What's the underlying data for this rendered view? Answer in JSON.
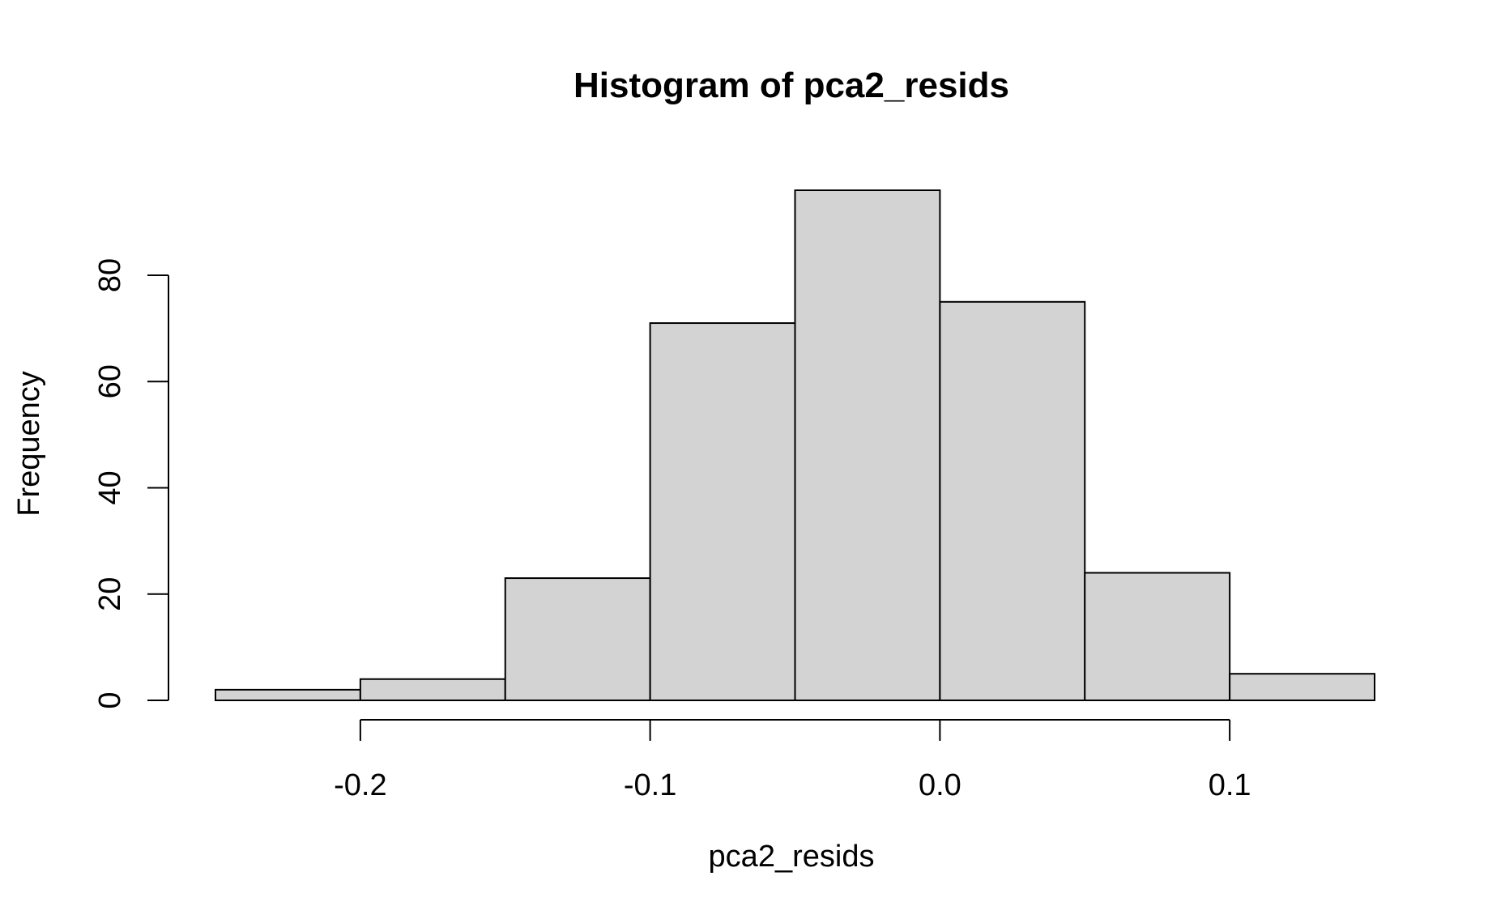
{
  "chart_data": {
    "type": "bar",
    "subtype": "histogram",
    "title": "Histogram of pca2_resids",
    "xlabel": "pca2_resids",
    "ylabel": "Frequency",
    "bins": [
      {
        "start": -0.25,
        "end": -0.2,
        "count": 2
      },
      {
        "start": -0.2,
        "end": -0.15,
        "count": 4
      },
      {
        "start": -0.15,
        "end": -0.1,
        "count": 23
      },
      {
        "start": -0.1,
        "end": -0.05,
        "count": 71
      },
      {
        "start": -0.05,
        "end": 0.0,
        "count": 96
      },
      {
        "start": 0.0,
        "end": 0.05,
        "count": 75
      },
      {
        "start": 0.05,
        "end": 0.1,
        "count": 24
      },
      {
        "start": 0.1,
        "end": 0.15,
        "count": 5
      }
    ],
    "xlim": [
      -0.25,
      0.15
    ],
    "ylim": [
      0,
      96
    ],
    "x_ticks": [
      -0.2,
      -0.1,
      0.0,
      0.1
    ],
    "x_tick_labels": [
      "-0.2",
      "-0.1",
      "0.0",
      "0.1"
    ],
    "y_ticks": [
      0,
      20,
      40,
      60,
      80
    ],
    "y_tick_labels": [
      "0",
      "20",
      "40",
      "60",
      "80"
    ],
    "grid": false,
    "legend": "none",
    "colors": {
      "bar_fill": "#d3d3d3",
      "bar_stroke": "#000000",
      "axis": "#000000",
      "background": "#ffffff"
    }
  }
}
